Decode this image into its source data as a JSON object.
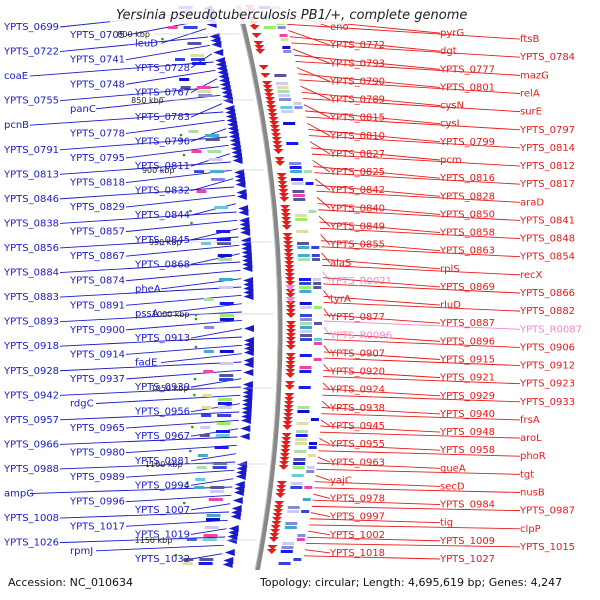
{
  "title": "Yersinia pseudotuberculosis PB1/+, complete genome",
  "footer": {
    "accession": "Accession: NC_010634",
    "summary": "Topology: circular; Length: 4,695,619 bp; Genes: 4,247"
  },
  "colors": {
    "reverse_strand": "#1a1acc",
    "forward_strand": "#e81a1a",
    "rna": "#ee88cc",
    "backbone": "#888888",
    "tick": "#229922"
  },
  "ticks": [
    "800 kbp",
    "850 kbp",
    "900 kbp",
    "950 kbp",
    "1000 kbp",
    "1050 kbp",
    "1100 kbp",
    "1150 kbp"
  ],
  "left_labels": [
    "YPTS_0699",
    "YPTS_0705",
    "leuD",
    "YPTS_0722",
    "YPTS_0741",
    "YPTS_0728",
    "coaE",
    "YPTS_0748",
    "YPTS_0767",
    "YPTS_0755",
    "panC",
    "YPTS_0783",
    "pcnB",
    "YPTS_0778",
    "YPTS_0796",
    "YPTS_0791",
    "YPTS_0795",
    "YPTS_0811",
    "YPTS_0813",
    "YPTS_0818",
    "YPTS_0832",
    "YPTS_0846",
    "YPTS_0829",
    "YPTS_0844",
    "YPTS_0838",
    "YPTS_0857",
    "YPTS_0845",
    "YPTS_0856",
    "YPTS_0867",
    "YPTS_0868",
    "YPTS_0884",
    "YPTS_0874",
    "pheA",
    "YPTS_0883",
    "YPTS_0891",
    "pssA",
    "YPTS_0893",
    "YPTS_0900",
    "YPTS_0913",
    "YPTS_0918",
    "YPTS_0914",
    "fadE",
    "YPTS_0928",
    "YPTS_0937",
    "YPTS_0939",
    "YPTS_0942",
    "rdgC",
    "YPTS_0956",
    "YPTS_0957",
    "YPTS_0965",
    "YPTS_0967",
    "YPTS_0966",
    "YPTS_0980",
    "YPTS_0981",
    "YPTS_0988",
    "YPTS_0989",
    "YPTS_0994",
    "ampG",
    "YPTS_0996",
    "YPTS_1007",
    "YPTS_1008",
    "YPTS_1017",
    "YPTS_1019",
    "YPTS_1026",
    "rpmJ",
    "YPTS_1032"
  ],
  "right_labels": [
    "eno",
    "pyrG",
    "ftsB",
    "YPTS_0772",
    "dgt",
    "YPTS_0784",
    "YPTS_0793",
    "YPTS_0777",
    "mazG",
    "YPTS_0790",
    "YPTS_0801",
    "relA",
    "YPTS_0789",
    "cysN",
    "surE",
    "YPTS_0815",
    "cysI",
    "YPTS_0797",
    "YPTS_0810",
    "YPTS_0799",
    "YPTS_0814",
    "YPTS_0827",
    "pcm",
    "YPTS_0812",
    "YPTS_0825",
    "YPTS_0816",
    "YPTS_0817",
    "YPTS_0842",
    "YPTS_0828",
    "araD",
    "YPTS_0840",
    "YPTS_0850",
    "YPTS_0841",
    "YPTS_0849",
    "YPTS_0858",
    "YPTS_0848",
    "YPTS_0855",
    "YPTS_0863",
    "YPTS_0854",
    "alaS",
    "rplS",
    "recX",
    "YPTS_R0021",
    "YPTS_0869",
    "YPTS_0866",
    "tyrA",
    "rluD",
    "YPTS_0882",
    "YPTS_0877",
    "YPTS_0887",
    "YPTS_R0087",
    "YPTS_R0096",
    "YPTS_0896",
    "YPTS_0906",
    "YPTS_0907",
    "YPTS_0915",
    "YPTS_0912",
    "YPTS_0920",
    "YPTS_0921",
    "YPTS_0923",
    "YPTS_0924",
    "YPTS_0929",
    "YPTS_0933",
    "YPTS_0938",
    "YPTS_0940",
    "frsA",
    "YPTS_0945",
    "YPTS_0948",
    "aroL",
    "YPTS_0955",
    "YPTS_0958",
    "phoR",
    "YPTS_0963",
    "queA",
    "tgt",
    "yajC",
    "secD",
    "nusB",
    "YPTS_0978",
    "YPTS_0984",
    "YPTS_0987",
    "YPTS_0997",
    "tig",
    "clpP",
    "YPTS_1002",
    "YPTS_1009",
    "YPTS_1015",
    "YPTS_1018",
    "YPTS_1027"
  ]
}
